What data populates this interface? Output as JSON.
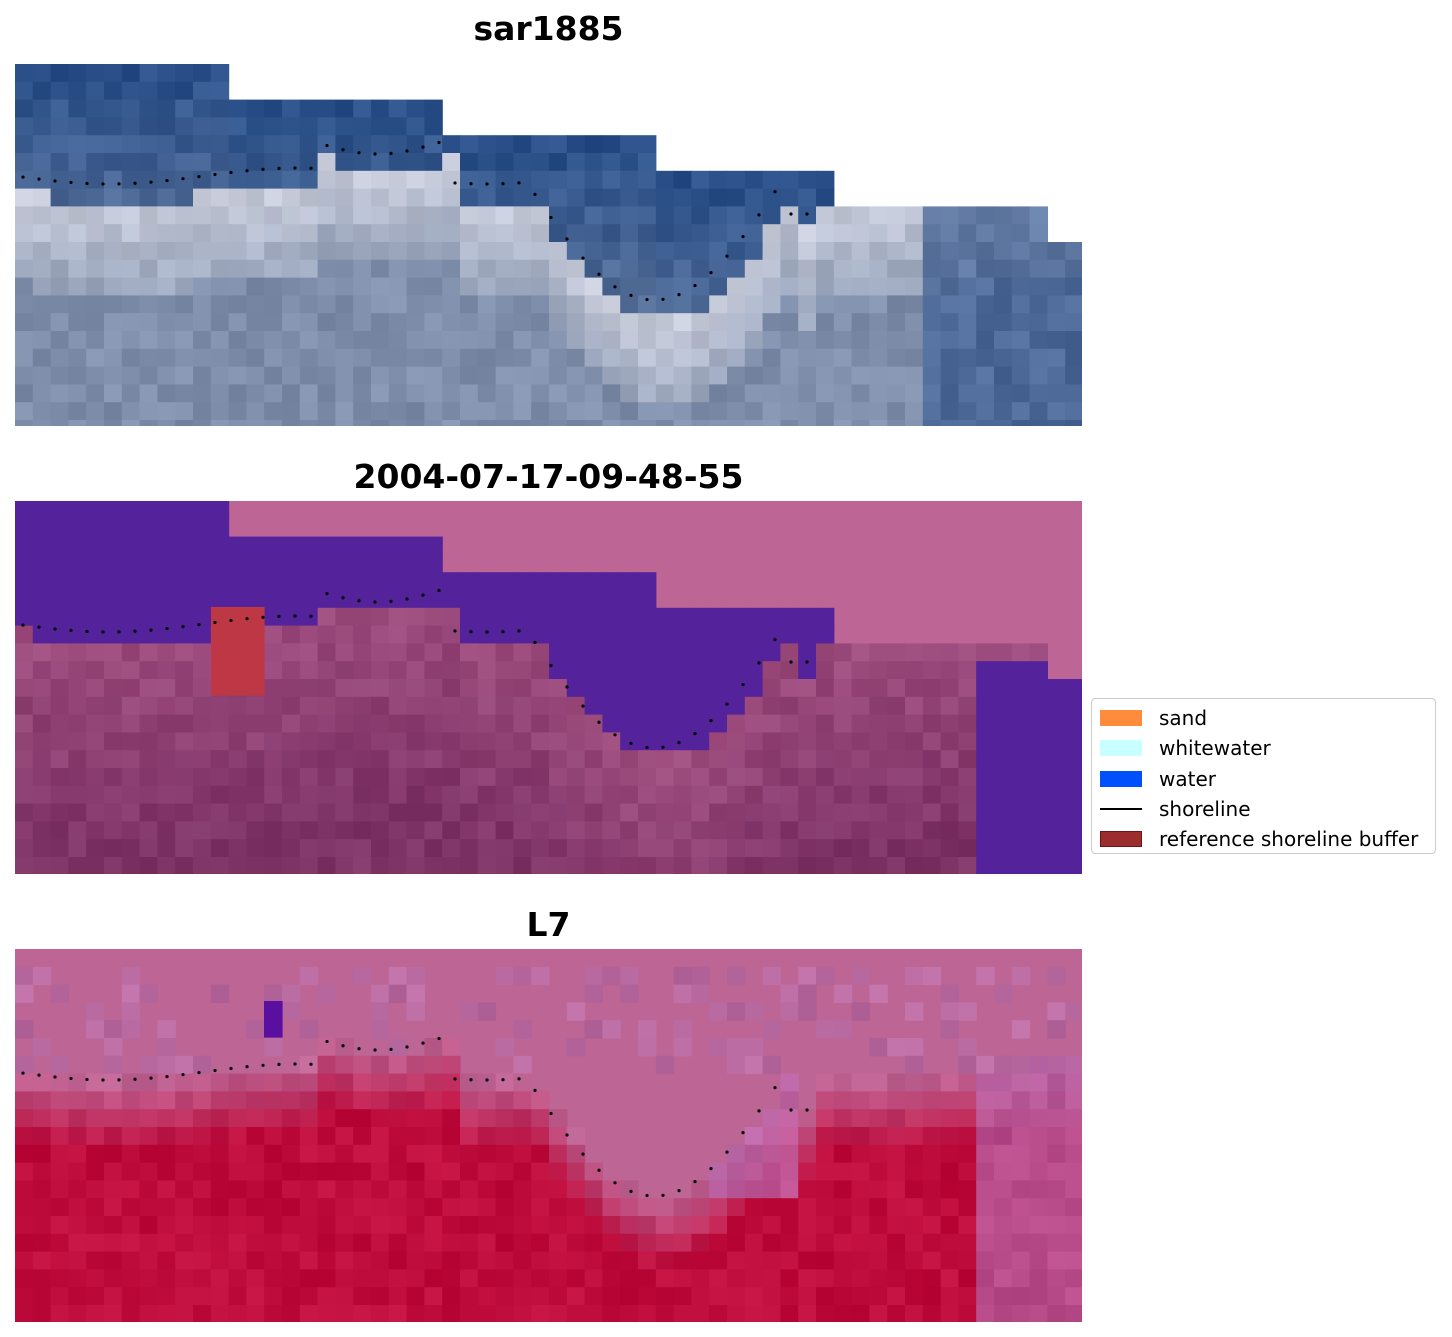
{
  "panels": [
    {
      "title": "sar1885",
      "kind": "rgb"
    },
    {
      "title": "2004-07-17-09-48-55",
      "kind": "classified"
    },
    {
      "title": "L7",
      "kind": "falsecolor"
    }
  ],
  "legend": {
    "items": [
      {
        "label": "sand",
        "color": "#ff8c3c",
        "type": "patch"
      },
      {
        "label": "whitewater",
        "color": "#c8ffff",
        "type": "patch"
      },
      {
        "label": "water",
        "color": "#0050ff",
        "type": "patch"
      },
      {
        "label": "shoreline",
        "color": "#000000",
        "type": "line"
      },
      {
        "label": "reference shoreline buffer",
        "color": "#9b2d2d",
        "type": "patch"
      }
    ]
  },
  "colors": {
    "rgb_ocean": "#2b5089",
    "rgb_surf": "#c9cddb",
    "rgb_land": "#7f8fab",
    "class_background": "#bd6595",
    "class_water": "#54229a",
    "class_land": "#7f3468",
    "class_buffer": "#bd3744",
    "fc_background": "#bd6595",
    "fc_land": "#be0c3c",
    "fc_purple": "#5a0fa0"
  }
}
